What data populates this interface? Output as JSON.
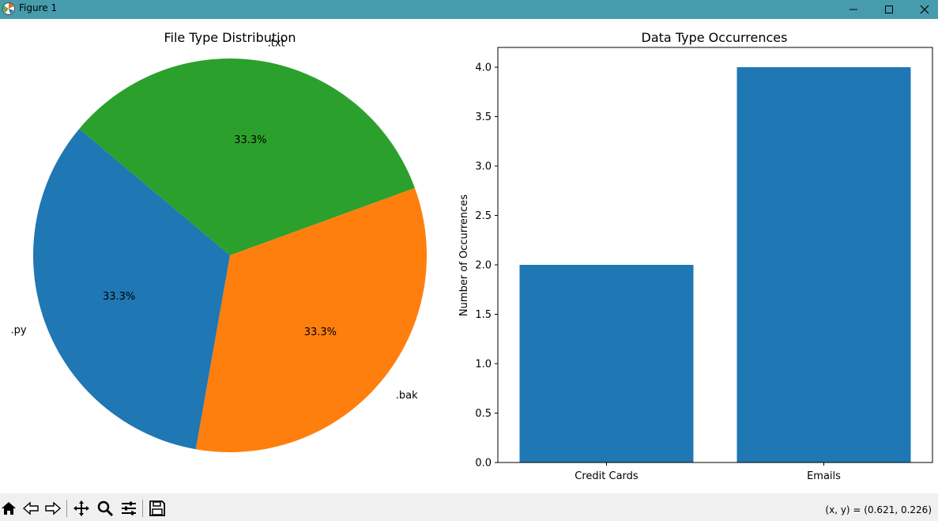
{
  "window": {
    "title": "Figure 1"
  },
  "toolbar": {
    "buttons": [
      "home-icon",
      "back-icon",
      "forward-icon",
      "pan-icon",
      "zoom-icon",
      "configure-subplots-icon",
      "save-icon"
    ],
    "coords": "(x, y) = (0.621, 0.226)"
  },
  "chart_data": [
    {
      "type": "pie",
      "title": "File Type Distribution",
      "labels": [
        ".txt",
        ".bak",
        ".py"
      ],
      "values": [
        1,
        1,
        1
      ],
      "pct_labels": [
        "33.3%",
        "33.3%",
        "33.3%"
      ],
      "colors": [
        "#2ca02c",
        "#ff7f0e",
        "#1f77b4"
      ]
    },
    {
      "type": "bar",
      "title": "Data Type Occurrences",
      "categories": [
        "Credit Cards",
        "Emails"
      ],
      "values": [
        2,
        4
      ],
      "ylabel": "Number of Occurrences",
      "xlabel": "",
      "ylim": [
        0,
        4.2
      ],
      "yticks": [
        "0.0",
        "0.5",
        "1.0",
        "1.5",
        "2.0",
        "2.5",
        "3.0",
        "3.5",
        "4.0"
      ],
      "color": "#1f77b4"
    }
  ]
}
